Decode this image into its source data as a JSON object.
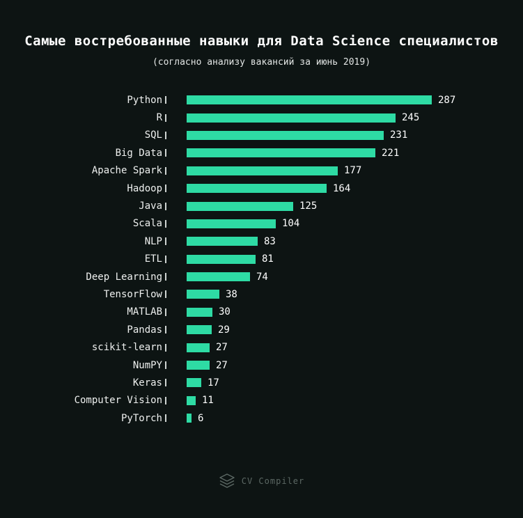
{
  "title": "Самые востребованные навыки для Data Science специалистов",
  "subtitle": "(согласно анализу вакансий за июнь 2019)",
  "footer": {
    "brand": "CV Compiler",
    "logo_icon": "layers-stack-icon"
  },
  "colors": {
    "background": "#0d1413",
    "bar": "#2edba4",
    "text": "#ffffff",
    "muted": "#5c6864"
  },
  "chart_data": {
    "type": "bar",
    "orientation": "horizontal",
    "title": "Самые востребованные навыки для Data Science специалистов",
    "subtitle": "(согласно анализу вакансий за июнь 2019)",
    "categories": [
      "Python",
      "R",
      "SQL",
      "Big Data",
      "Apache Spark",
      "Hadoop",
      "Java",
      "Scala",
      "NLP",
      "ETL",
      "Deep Learning",
      "TensorFlow",
      "MATLAB",
      "Pandas",
      "scikit-learn",
      "NumPY",
      "Keras",
      "Computer Vision",
      "PyTorch"
    ],
    "values": [
      287,
      245,
      231,
      221,
      177,
      164,
      125,
      104,
      83,
      81,
      74,
      38,
      30,
      29,
      27,
      27,
      17,
      11,
      6
    ],
    "xlabel": "",
    "ylabel": "",
    "xlim": [
      0,
      300
    ],
    "grid": false,
    "legend": false,
    "data_labels": true
  }
}
